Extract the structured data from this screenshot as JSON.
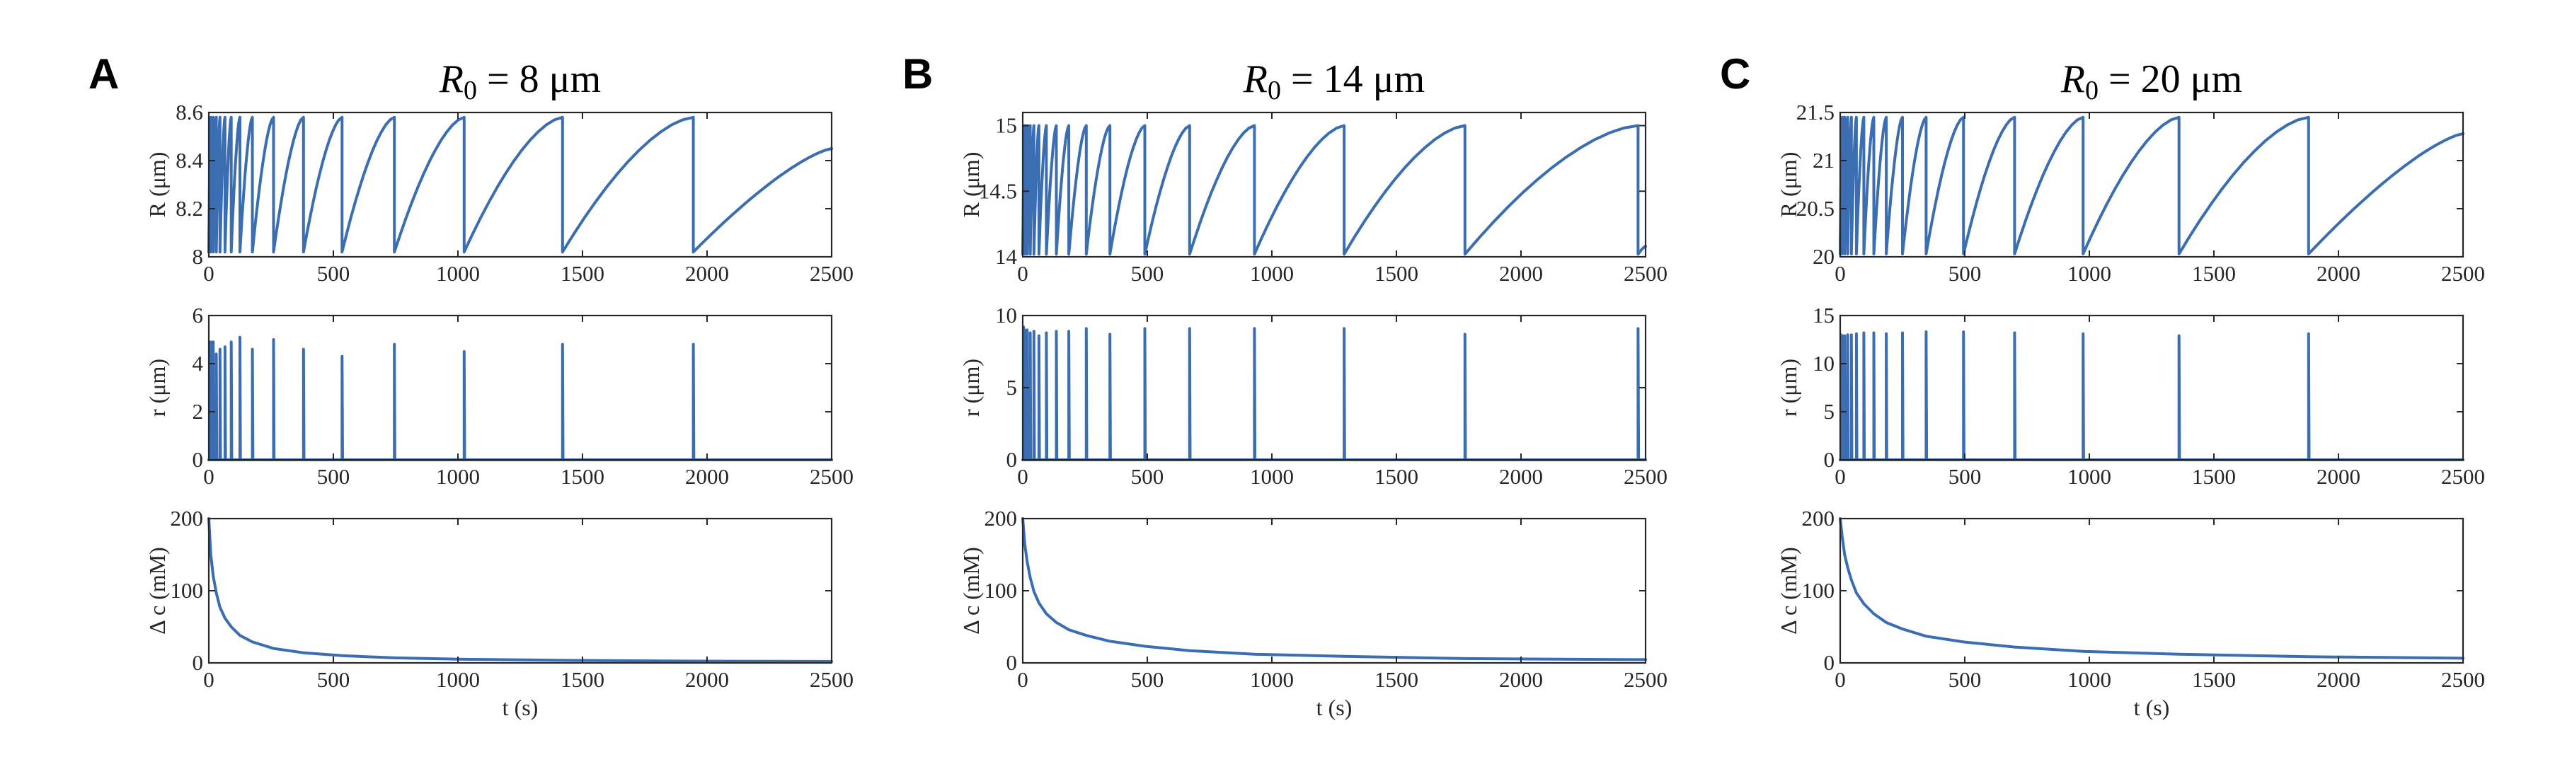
{
  "colors": {
    "series": "#3b6db3",
    "axes": "#262626",
    "background": "#ffffff"
  },
  "panels": [
    {
      "letter": "A",
      "title_lhs": "R",
      "title_sub": "0",
      "title_rhs": " = 8 μm"
    },
    {
      "letter": "B",
      "title_lhs": "R",
      "title_sub": "0",
      "title_rhs": " = 14 μm"
    },
    {
      "letter": "C",
      "title_lhs": "R",
      "title_sub": "0",
      "title_rhs": " = 20 μm"
    }
  ],
  "chart_data": [
    {
      "panel": "A",
      "type": "line",
      "title": "R0 = 8 μm",
      "subplots": [
        {
          "ylabel": "R (μm)",
          "xlabel": "",
          "xlim": [
            0,
            2500
          ],
          "ylim": [
            8,
            8.6
          ],
          "xticks": [
            "0",
            "500",
            "1000",
            "1500",
            "2000",
            "2500"
          ],
          "yticks": [
            "8",
            "8.2",
            "8.4",
            "8.6"
          ],
          "kind": "sawtooth",
          "Rmin": 8.02,
          "Rmax": 8.58,
          "resets": [
            8,
            18,
            30,
            45,
            65,
            90,
            125,
            175,
            260,
            380,
            535,
            745,
            1025,
            1420,
            1945
          ],
          "end_value": 8.45
        },
        {
          "ylabel": "r (μm)",
          "xlabel": "",
          "xlim": [
            0,
            2500
          ],
          "ylim": [
            0,
            6
          ],
          "xticks": [
            "0",
            "500",
            "1000",
            "1500",
            "2000",
            "2500"
          ],
          "yticks": [
            "0",
            "2",
            "4",
            "6"
          ],
          "kind": "spikes",
          "spikes": [
            [
              3,
              4.9
            ],
            [
              8,
              4.9
            ],
            [
              18,
              4.9
            ],
            [
              30,
              4.4
            ],
            [
              45,
              4.6
            ],
            [
              65,
              4.7
            ],
            [
              90,
              4.9
            ],
            [
              125,
              5.1
            ],
            [
              175,
              4.6
            ],
            [
              260,
              5.0
            ],
            [
              380,
              4.6
            ],
            [
              535,
              4.3
            ],
            [
              745,
              4.8
            ],
            [
              1025,
              4.5
            ],
            [
              1420,
              4.8
            ],
            [
              1945,
              4.8
            ]
          ]
        },
        {
          "ylabel": "Δ c (mM)",
          "xlabel": "t (s)",
          "xlim": [
            0,
            2500
          ],
          "ylim": [
            0,
            200
          ],
          "xticks": [
            "0",
            "500",
            "1000",
            "1500",
            "2000",
            "2500"
          ],
          "yticks": [
            "0",
            "100",
            "200"
          ],
          "kind": "decay",
          "points": [
            [
              0,
              200
            ],
            [
              8,
              150
            ],
            [
              18,
              120
            ],
            [
              30,
              97
            ],
            [
              45,
              77
            ],
            [
              65,
              62
            ],
            [
              90,
              50
            ],
            [
              125,
              38
            ],
            [
              175,
              29
            ],
            [
              260,
              20
            ],
            [
              380,
              14
            ],
            [
              535,
              10
            ],
            [
              745,
              7
            ],
            [
              1025,
              5
            ],
            [
              1420,
              3.5
            ],
            [
              1945,
              2.5
            ],
            [
              2500,
              2
            ]
          ]
        }
      ]
    },
    {
      "panel": "B",
      "type": "line",
      "title": "R0 = 14 μm",
      "subplots": [
        {
          "ylabel": "R (μm)",
          "xlabel": "",
          "xlim": [
            0,
            2500
          ],
          "ylim": [
            14,
            15.1
          ],
          "xticks": [
            "0",
            "500",
            "1000",
            "1500",
            "2000",
            "2500"
          ],
          "yticks": [
            "14",
            "14.5",
            "15"
          ],
          "kind": "sawtooth",
          "Rmin": 14.02,
          "Rmax": 15.0,
          "resets": [
            8,
            18,
            30,
            45,
            65,
            95,
            135,
            185,
            255,
            350,
            490,
            670,
            930,
            1290,
            1775,
            2470
          ],
          "end_value": 14.08
        },
        {
          "ylabel": "r (μm)",
          "xlabel": "",
          "xlim": [
            0,
            2500
          ],
          "ylim": [
            0,
            10
          ],
          "xticks": [
            "0",
            "500",
            "1000",
            "1500",
            "2000",
            "2500"
          ],
          "yticks": [
            "0",
            "5",
            "10"
          ],
          "kind": "spikes",
          "spikes": [
            [
              3,
              9.2
            ],
            [
              8,
              9.0
            ],
            [
              18,
              9.0
            ],
            [
              30,
              8.8
            ],
            [
              45,
              8.9
            ],
            [
              65,
              8.6
            ],
            [
              95,
              8.8
            ],
            [
              135,
              8.9
            ],
            [
              185,
              8.9
            ],
            [
              255,
              9.1
            ],
            [
              350,
              8.7
            ],
            [
              490,
              9.1
            ],
            [
              670,
              9.1
            ],
            [
              930,
              9.1
            ],
            [
              1290,
              9.1
            ],
            [
              1775,
              8.7
            ],
            [
              2470,
              9.1
            ]
          ]
        },
        {
          "ylabel": "Δ c (mM)",
          "xlabel": "t (s)",
          "xlim": [
            0,
            2500
          ],
          "ylim": [
            0,
            200
          ],
          "xticks": [
            "0",
            "500",
            "1000",
            "1500",
            "2000",
            "2500"
          ],
          "yticks": [
            "0",
            "100",
            "200"
          ],
          "kind": "decay",
          "points": [
            [
              0,
              200
            ],
            [
              8,
              165
            ],
            [
              18,
              140
            ],
            [
              30,
              118
            ],
            [
              45,
              99
            ],
            [
              65,
              83
            ],
            [
              95,
              68
            ],
            [
              135,
              56
            ],
            [
              185,
              46
            ],
            [
              255,
              38
            ],
            [
              350,
              30
            ],
            [
              490,
              23
            ],
            [
              670,
              17
            ],
            [
              930,
              12
            ],
            [
              1290,
              9
            ],
            [
              1775,
              6
            ],
            [
              2470,
              4.5
            ],
            [
              2500,
              4.5
            ]
          ]
        }
      ]
    },
    {
      "panel": "C",
      "type": "line",
      "title": "R0 = 20 μm",
      "subplots": [
        {
          "ylabel": "R (μm)",
          "xlabel": "",
          "xlim": [
            0,
            2500
          ],
          "ylim": [
            20,
            21.5
          ],
          "xticks": [
            "0",
            "500",
            "1000",
            "1500",
            "2000",
            "2500"
          ],
          "yticks": [
            "20",
            "20.5",
            "21",
            "21.5"
          ],
          "kind": "sawtooth",
          "Rmin": 20.03,
          "Rmax": 21.45,
          "resets": [
            8,
            18,
            30,
            45,
            65,
            95,
            135,
            185,
            250,
            345,
            495,
            700,
            975,
            1360,
            1880
          ],
          "end_value": 21.28
        },
        {
          "ylabel": "r (μm)",
          "xlabel": "",
          "xlim": [
            0,
            2500
          ],
          "ylim": [
            0,
            15
          ],
          "xticks": [
            "0",
            "500",
            "1000",
            "1500",
            "2000",
            "2500"
          ],
          "yticks": [
            "0",
            "5",
            "10",
            "15"
          ],
          "kind": "spikes",
          "spikes": [
            [
              3,
              13.0
            ],
            [
              8,
              12.9
            ],
            [
              18,
              12.9
            ],
            [
              30,
              13.0
            ],
            [
              45,
              13.0
            ],
            [
              65,
              13.1
            ],
            [
              95,
              13.2
            ],
            [
              135,
              13.2
            ],
            [
              185,
              13.1
            ],
            [
              250,
              13.2
            ],
            [
              345,
              13.3
            ],
            [
              495,
              13.3
            ],
            [
              700,
              13.2
            ],
            [
              975,
              13.1
            ],
            [
              1360,
              12.9
            ],
            [
              1880,
              13.1
            ]
          ]
        },
        {
          "ylabel": "Δ c (mM)",
          "xlabel": "t (s)",
          "xlim": [
            0,
            2500
          ],
          "ylim": [
            0,
            200
          ],
          "xticks": [
            "0",
            "500",
            "1000",
            "1500",
            "2000",
            "2500"
          ],
          "yticks": [
            "0",
            "100",
            "200"
          ],
          "kind": "decay",
          "points": [
            [
              0,
              200
            ],
            [
              8,
              175
            ],
            [
              18,
              150
            ],
            [
              30,
              132
            ],
            [
              45,
              115
            ],
            [
              65,
              97
            ],
            [
              95,
              82
            ],
            [
              135,
              68
            ],
            [
              185,
              56
            ],
            [
              250,
              47
            ],
            [
              345,
              37
            ],
            [
              495,
              29
            ],
            [
              700,
              22
            ],
            [
              975,
              16
            ],
            [
              1360,
              12
            ],
            [
              1880,
              8.5
            ],
            [
              2500,
              6.5
            ]
          ]
        }
      ]
    }
  ]
}
